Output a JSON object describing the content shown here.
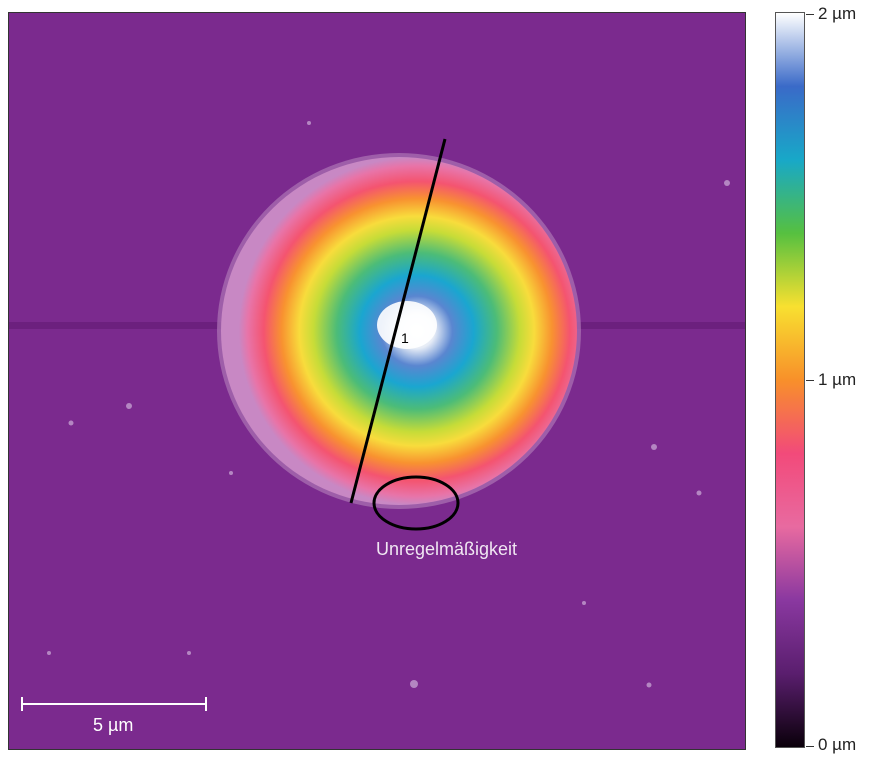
{
  "image": {
    "profile_label": "1",
    "annotation": "Unregelmäßigkeit",
    "scale_bar_label": "5 µm"
  },
  "colorbar": {
    "max_label": "2 µm",
    "mid_label": "1 µm",
    "min_label": "0 µm",
    "colors": [
      "#0a000a",
      "#5a1e6e",
      "#8a38a0",
      "#e86aa0",
      "#f24a7a",
      "#f8902a",
      "#f8e030",
      "#56c040",
      "#18a8c8",
      "#3a6ac8",
      "#ffffff"
    ]
  }
}
